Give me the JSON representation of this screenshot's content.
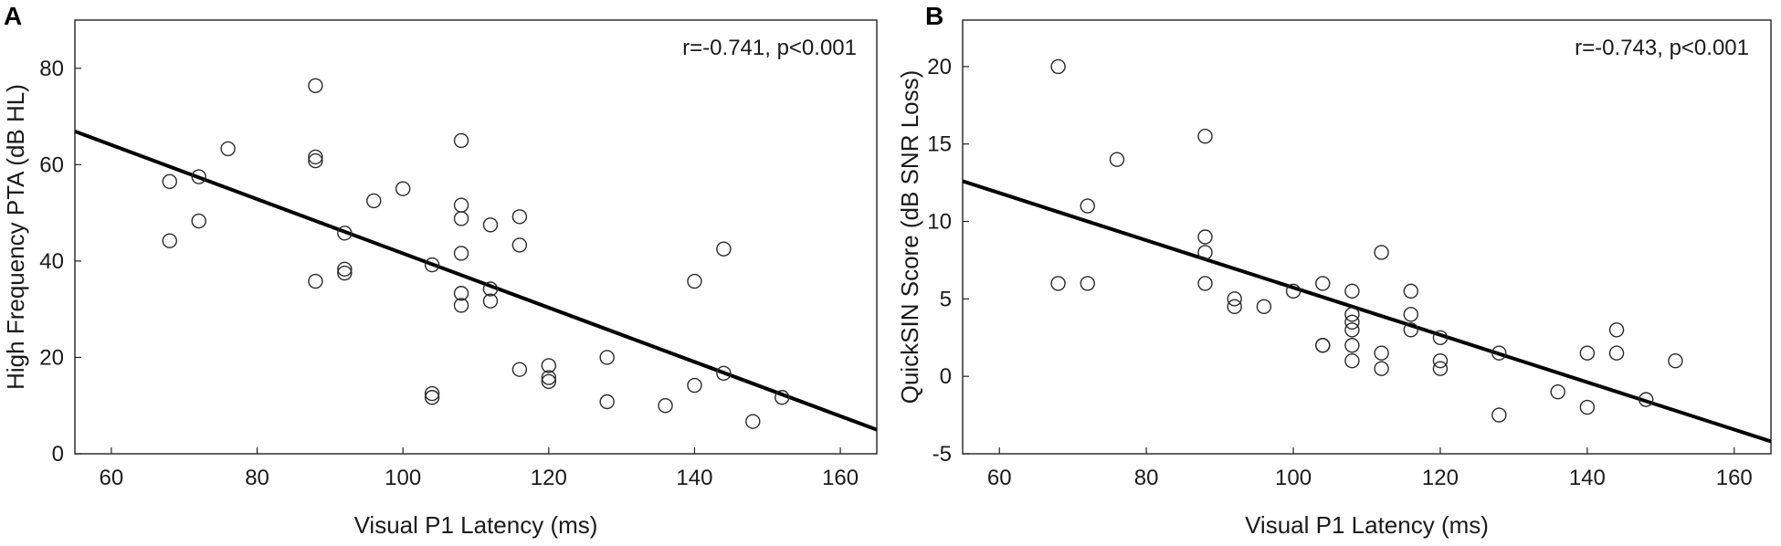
{
  "panels": [
    {
      "label": "A"
    },
    {
      "label": "B"
    }
  ],
  "chart_data": [
    {
      "type": "scatter",
      "title": "",
      "panel": "A",
      "xlabel": "Visual P1 Latency (ms)",
      "ylabel": "High Frequency PTA (dB HL)",
      "xlim": [
        55,
        165
      ],
      "ylim": [
        0,
        90
      ],
      "xticks": [
        60,
        80,
        100,
        120,
        140,
        160
      ],
      "yticks": [
        0,
        20,
        40,
        60,
        80
      ],
      "annotation": "r=-0.741, p<0.001",
      "grid": false,
      "trendline": {
        "x": [
          55,
          165
        ],
        "y": [
          66.9,
          5.0
        ]
      },
      "points": [
        {
          "x": 68,
          "y": 56.5
        },
        {
          "x": 68,
          "y": 44.2
        },
        {
          "x": 72,
          "y": 57.5
        },
        {
          "x": 72,
          "y": 48.3
        },
        {
          "x": 76,
          "y": 63.3
        },
        {
          "x": 88,
          "y": 76.4
        },
        {
          "x": 88,
          "y": 61.6
        },
        {
          "x": 88,
          "y": 60.8
        },
        {
          "x": 88,
          "y": 35.8
        },
        {
          "x": 92,
          "y": 45.8
        },
        {
          "x": 92,
          "y": 38.3
        },
        {
          "x": 92,
          "y": 37.5
        },
        {
          "x": 96,
          "y": 52.5
        },
        {
          "x": 100,
          "y": 55.0
        },
        {
          "x": 104,
          "y": 39.2
        },
        {
          "x": 104,
          "y": 12.5
        },
        {
          "x": 104,
          "y": 11.7
        },
        {
          "x": 108,
          "y": 65.0
        },
        {
          "x": 108,
          "y": 51.6
        },
        {
          "x": 108,
          "y": 48.8
        },
        {
          "x": 108,
          "y": 41.6
        },
        {
          "x": 108,
          "y": 33.3
        },
        {
          "x": 108,
          "y": 30.8
        },
        {
          "x": 112,
          "y": 47.5
        },
        {
          "x": 112,
          "y": 34.2
        },
        {
          "x": 112,
          "y": 31.7
        },
        {
          "x": 116,
          "y": 49.2
        },
        {
          "x": 116,
          "y": 43.3
        },
        {
          "x": 116,
          "y": 17.5
        },
        {
          "x": 120,
          "y": 18.3
        },
        {
          "x": 120,
          "y": 15.8
        },
        {
          "x": 120,
          "y": 15.0
        },
        {
          "x": 128,
          "y": 20.0
        },
        {
          "x": 128,
          "y": 10.8
        },
        {
          "x": 136,
          "y": 10.0
        },
        {
          "x": 140,
          "y": 35.8
        },
        {
          "x": 140,
          "y": 14.2
        },
        {
          "x": 144,
          "y": 42.5
        },
        {
          "x": 144,
          "y": 16.7
        },
        {
          "x": 148,
          "y": 6.7
        },
        {
          "x": 152,
          "y": 11.7
        }
      ]
    },
    {
      "type": "scatter",
      "title": "",
      "panel": "B",
      "xlabel": "Visual P1 Latency (ms)",
      "ylabel": "QuickSIN Score (dB SNR Loss)",
      "xlim": [
        55,
        165
      ],
      "ylim": [
        -5,
        23
      ],
      "xticks": [
        60,
        80,
        100,
        120,
        140,
        160
      ],
      "yticks": [
        -5,
        0,
        5,
        10,
        15,
        20
      ],
      "annotation": "r=-0.743, p<0.001",
      "grid": false,
      "trendline": {
        "x": [
          55,
          165
        ],
        "y": [
          12.6,
          -4.2
        ]
      },
      "points": [
        {
          "x": 68,
          "y": 20.0
        },
        {
          "x": 68,
          "y": 6.0
        },
        {
          "x": 72,
          "y": 11.0
        },
        {
          "x": 72,
          "y": 6.0
        },
        {
          "x": 76,
          "y": 14.0
        },
        {
          "x": 88,
          "y": 15.5
        },
        {
          "x": 88,
          "y": 9.0
        },
        {
          "x": 88,
          "y": 8.0
        },
        {
          "x": 88,
          "y": 6.0
        },
        {
          "x": 92,
          "y": 5.0
        },
        {
          "x": 92,
          "y": 4.5
        },
        {
          "x": 96,
          "y": 4.5
        },
        {
          "x": 100,
          "y": 5.5
        },
        {
          "x": 104,
          "y": 6.0
        },
        {
          "x": 104,
          "y": 2.0
        },
        {
          "x": 104,
          "y": 2.0
        },
        {
          "x": 108,
          "y": 5.5
        },
        {
          "x": 108,
          "y": 4.0
        },
        {
          "x": 108,
          "y": 3.5
        },
        {
          "x": 108,
          "y": 3.0
        },
        {
          "x": 108,
          "y": 2.0
        },
        {
          "x": 108,
          "y": 1.0
        },
        {
          "x": 112,
          "y": 8.0
        },
        {
          "x": 112,
          "y": 1.5
        },
        {
          "x": 112,
          "y": 0.5
        },
        {
          "x": 116,
          "y": 5.5
        },
        {
          "x": 116,
          "y": 4.0
        },
        {
          "x": 116,
          "y": 3.0
        },
        {
          "x": 120,
          "y": 2.5
        },
        {
          "x": 120,
          "y": 1.0
        },
        {
          "x": 120,
          "y": 0.5
        },
        {
          "x": 128,
          "y": 1.5
        },
        {
          "x": 128,
          "y": -2.5
        },
        {
          "x": 136,
          "y": -1.0
        },
        {
          "x": 140,
          "y": 1.5
        },
        {
          "x": 140,
          "y": -2.0
        },
        {
          "x": 144,
          "y": 3.0
        },
        {
          "x": 144,
          "y": 1.5
        },
        {
          "x": 148,
          "y": -1.5
        },
        {
          "x": 152,
          "y": 1.0
        }
      ]
    }
  ]
}
